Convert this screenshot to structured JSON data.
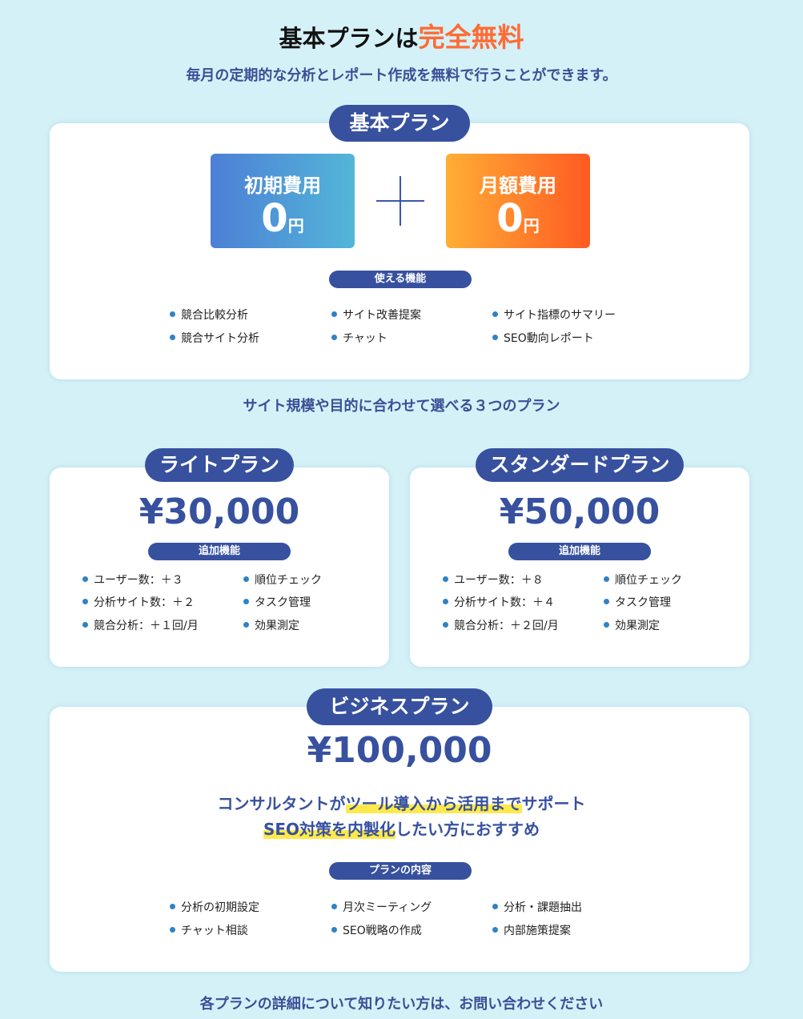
{
  "header": {
    "title_prefix": "基本プランは",
    "title_accent": "完全無料",
    "subtitle": "毎月の定期的な分析とレポート作成を無料で行うことができます。"
  },
  "basic": {
    "label": "基本プラン",
    "initial": {
      "label": "初期費用",
      "value": "0",
      "unit": "円"
    },
    "monthly": {
      "label": "月額費用",
      "value": "0",
      "unit": "円"
    },
    "features_label": "使える機能",
    "features": [
      "競合比較分析",
      "サイト改善提案",
      "サイト指標のサマリー",
      "競合サイト分析",
      "チャット",
      "SEO動向レポート"
    ]
  },
  "plans_heading": "サイト規模や目的に合わせて選べる３つのプラン",
  "lite": {
    "label": "ライトプラン",
    "price": "¥30,000",
    "features_label": "追加機能",
    "features": [
      "ユーザー数：＋３",
      "分析サイト数：＋２",
      "競合分析：＋１回/月",
      "順位チェック",
      "タスク管理",
      "効果測定"
    ]
  },
  "standard": {
    "label": "スタンダードプラン",
    "price": "¥50,000",
    "features_label": "追加機能",
    "features": [
      "ユーザー数：＋８",
      "分析サイト数：＋４",
      "競合分析：＋２回/月",
      "順位チェック",
      "タスク管理",
      "効果測定"
    ]
  },
  "business": {
    "label": "ビジネスプラン",
    "price": "¥100,000",
    "line1": {
      "a": "コンサルタントが",
      "b": "ツール導入から活用まで",
      "c": "サポート"
    },
    "line2": {
      "a": "SEO対策を内製化",
      "b": "したい方におすすめ"
    },
    "features_label": "プランの内容",
    "features": [
      "分析の初期設定",
      "月次ミーティング",
      "分析・課題抽出",
      "チャット相談",
      "SEO戦略の作成",
      "内部施策提案"
    ]
  },
  "footer": "各プランの詳細について知りたい方は、お問い合わせください",
  "colors": {
    "background": "#d4f1f7",
    "navy": "#37519f",
    "accent": "#ff6b35",
    "highlight": "#ffe94a"
  }
}
